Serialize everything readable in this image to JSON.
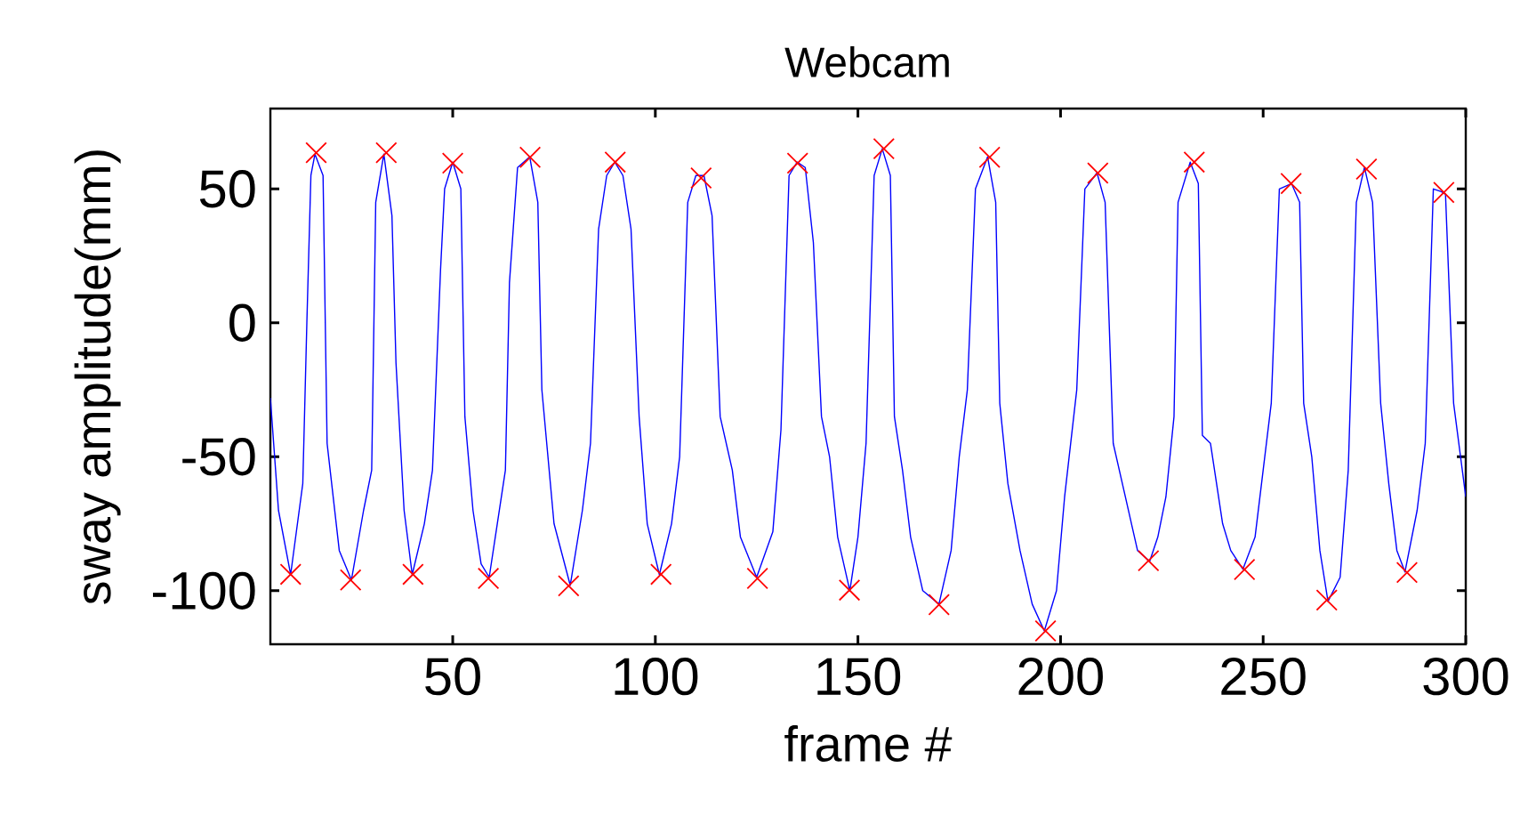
{
  "chart_data": {
    "type": "line",
    "title": "Webcam",
    "xlabel": "frame #",
    "ylabel": "sway amplitude(mm)",
    "xlim": [
      5,
      300
    ],
    "ylim": [
      -120,
      80
    ],
    "xticks": [
      50,
      100,
      150,
      200,
      250,
      300
    ],
    "yticks": [
      -100,
      -50,
      0,
      50
    ],
    "series": [
      {
        "color": "#0000ff",
        "x": [
          5,
          7,
          10,
          13,
          14,
          15,
          16,
          18,
          19,
          22,
          25,
          28,
          30,
          31,
          33,
          35,
          36,
          38,
          40,
          43,
          45,
          47,
          48,
          50,
          52,
          53,
          55,
          57,
          59,
          61,
          63,
          64,
          66,
          69,
          71,
          72,
          75,
          79,
          82,
          84,
          86,
          88,
          90,
          92,
          94,
          96,
          98,
          101,
          104,
          106,
          108,
          110,
          112,
          114,
          116,
          119,
          121,
          125,
          129,
          131,
          133,
          135,
          137,
          139,
          141,
          143,
          145,
          148,
          150,
          152,
          154,
          156,
          158,
          159,
          161,
          163,
          166,
          170,
          173,
          175,
          177,
          179,
          182,
          184,
          185,
          187,
          190,
          193,
          196,
          199,
          201,
          204,
          206,
          209,
          211,
          213,
          216,
          219,
          222,
          224,
          226,
          228,
          229,
          232,
          234,
          235,
          237,
          240,
          242,
          245,
          248,
          250,
          252,
          254,
          257,
          259,
          260,
          262,
          264,
          266,
          269,
          271,
          273,
          275,
          277,
          279,
          281,
          283,
          285,
          288,
          290,
          292,
          294,
          295,
          297,
          300
        ],
        "values": [
          -28,
          -70,
          -94,
          -60,
          0,
          55,
          63,
          55,
          -45,
          -85,
          -96,
          -70,
          -55,
          45,
          63,
          40,
          -15,
          -70,
          -94,
          -75,
          -55,
          20,
          50,
          60,
          50,
          -35,
          -70,
          -90,
          -95,
          -75,
          -55,
          15,
          58,
          62,
          45,
          -25,
          -75,
          -98,
          -70,
          -45,
          35,
          55,
          60,
          55,
          35,
          -35,
          -75,
          -94,
          -75,
          -50,
          45,
          55,
          55,
          40,
          -35,
          -55,
          -80,
          -95,
          -78,
          -40,
          55,
          60,
          58,
          30,
          -35,
          -50,
          -80,
          -100,
          -80,
          -45,
          55,
          65,
          55,
          -35,
          -55,
          -80,
          -100,
          -105,
          -85,
          -50,
          -25,
          50,
          62,
          45,
          -30,
          -60,
          -85,
          -105,
          -115,
          -100,
          -65,
          -25,
          50,
          56,
          45,
          -45,
          -65,
          -85,
          -89,
          -80,
          -65,
          -35,
          45,
          60,
          52,
          -42,
          -45,
          -75,
          -85,
          -92,
          -80,
          -55,
          -30,
          50,
          52,
          45,
          -30,
          -50,
          -85,
          -104,
          -95,
          -55,
          45,
          58,
          45,
          -30,
          -60,
          -85,
          -93,
          -70,
          -45,
          50,
          49,
          48,
          -30,
          -65
        ]
      },
      {
        "type": "scatter",
        "color": "#ff0000",
        "marker": "cross",
        "x": [
          16.3,
          33.6,
          50,
          69.1,
          90.1,
          111.3,
          135.1,
          156.4,
          182.5,
          209.2,
          233,
          256.9,
          275.5,
          294.6,
          10,
          24.8,
          40.2,
          58.8,
          78.6,
          101.4,
          125.2,
          147.9,
          170,
          196.3,
          221.7,
          245.4,
          265.7,
          285.5
        ],
        "values": [
          63.5,
          63.5,
          59.6,
          61.8,
          60,
          54.1,
          59.6,
          65,
          61.8,
          55.9,
          60,
          52,
          57.4,
          48.7,
          -93.9,
          -96,
          -93.9,
          -95.4,
          -98.2,
          -93.9,
          -95.4,
          -99.8,
          -105.2,
          -115,
          -88.8,
          -92.1,
          -103.5,
          -93.2
        ]
      }
    ]
  }
}
